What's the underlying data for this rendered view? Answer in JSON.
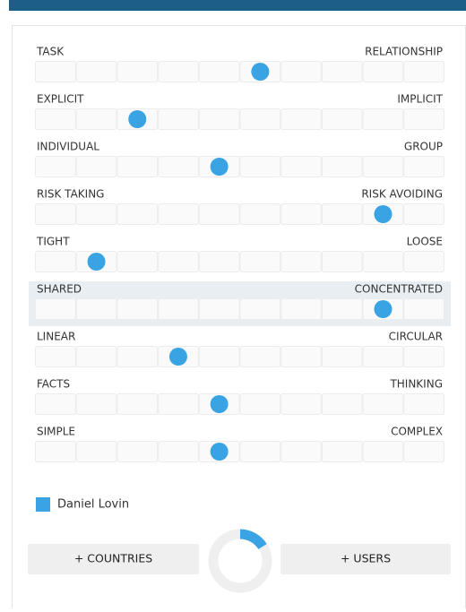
{
  "sliders": [
    {
      "left": "TASK",
      "right": "RELATIONSHIP",
      "value": 5.5
    },
    {
      "left": "EXPLICIT",
      "right": "IMPLICIT",
      "value": 2.5
    },
    {
      "left": "INDIVIDUAL",
      "right": "GROUP",
      "value": 4.5
    },
    {
      "left": "RISK TAKING",
      "right": "RISK AVOIDING",
      "value": 8.5
    },
    {
      "left": "TIGHT",
      "right": "LOOSE",
      "value": 1.5
    },
    {
      "left": "SHARED",
      "right": "CONCENTRATED",
      "value": 8.5,
      "highlighted": true
    },
    {
      "left": "LINEAR",
      "right": "CIRCULAR",
      "value": 3.5
    },
    {
      "left": "FACTS",
      "right": "THINKING",
      "value": 4.5
    },
    {
      "left": "SIMPLE",
      "right": "COMPLEX",
      "value": 4.5
    }
  ],
  "scale_max": 10,
  "color": "#3aa3e3",
  "legend": {
    "name": "Daniel Lovin"
  },
  "buttons": [
    "+ COUNTRIES",
    "+ USERS"
  ]
}
